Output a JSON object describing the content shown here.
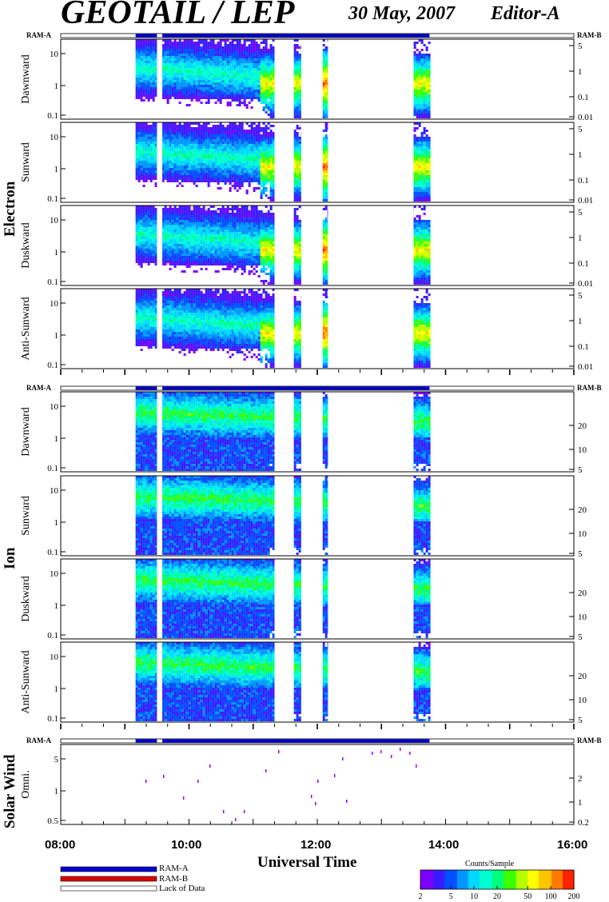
{
  "header": {
    "title": "GEOTAIL / LEP",
    "date": "30 May, 2007",
    "editor": "Editor-A"
  },
  "ram_labels": {
    "left": "RAM-A",
    "right": "RAM-B"
  },
  "groups": {
    "electron": "Electron",
    "ion": "Ion",
    "solar_wind": "Solar Wind"
  },
  "chart_data": {
    "type": "heatmap",
    "title": "GEOTAIL / LEP",
    "xlabel": "Universal Time",
    "x_ticks": [
      "08:00",
      "10:00",
      "12:00",
      "14:00",
      "16:00"
    ],
    "x_range": [
      "08:00",
      "16:00"
    ],
    "data_coverage": [
      "09:10",
      "13:45"
    ],
    "data_gaps": [
      "09:30",
      "09:35",
      "11:20",
      "11:38",
      "11:45",
      "12:05",
      "12:10",
      "13:30"
    ],
    "colorbar": {
      "label": "Counts/Sample",
      "ticks": [
        "2",
        "5",
        "10",
        "20",
        "50",
        "100",
        "200"
      ],
      "range": [
        2,
        200
      ],
      "scale": "log"
    },
    "electron_panels": [
      {
        "name": "Dawnward",
        "left_ticks": [
          "10",
          "1",
          "0.1"
        ],
        "right_ticks": [
          "5",
          "1",
          "0.1",
          "0.01"
        ]
      },
      {
        "name": "Sunward",
        "left_ticks": [
          "10",
          "1",
          "0.1"
        ],
        "right_ticks": [
          "5",
          "1",
          "0.1",
          "0.01"
        ]
      },
      {
        "name": "Duskward",
        "left_ticks": [
          "10",
          "1",
          "0.1"
        ],
        "right_ticks": [
          "5",
          "1",
          "0.1",
          "0.01"
        ]
      },
      {
        "name": "Anti-Sunward",
        "left_ticks": [
          "10",
          "1",
          "0.1"
        ],
        "right_ticks": [
          "5",
          "1",
          "0.1",
          "0.01"
        ]
      }
    ],
    "ion_panels": [
      {
        "name": "Dawnward",
        "left_ticks": [
          "10",
          "1",
          "0.1"
        ],
        "right_ticks": [
          "20",
          "10",
          "5"
        ]
      },
      {
        "name": "Sunward",
        "left_ticks": [
          "10",
          "1",
          "0.1"
        ],
        "right_ticks": [
          "20",
          "10",
          "5"
        ]
      },
      {
        "name": "Duskward",
        "left_ticks": [
          "10",
          "1",
          "0.1"
        ],
        "right_ticks": [
          "20",
          "10",
          "5"
        ]
      },
      {
        "name": "Anti-Sunward",
        "left_ticks": [
          "10",
          "1",
          "0.1"
        ],
        "right_ticks": [
          "20",
          "10",
          "5"
        ]
      }
    ],
    "solar_wind_panel": {
      "name": "Omni.",
      "left_ticks": [
        "5",
        "1",
        "0.5"
      ],
      "right_ticks": [
        "2",
        "1",
        "0.2"
      ]
    }
  },
  "legend": {
    "items": [
      {
        "label": "RAM-A",
        "color": "#0000cc"
      },
      {
        "label": "RAM-B",
        "color": "#dd0000"
      },
      {
        "label": "Lack of Data",
        "color": "#ffffff"
      }
    ]
  },
  "colors": {
    "ram_a": "#0000cc",
    "ram_b": "#dd0000",
    "frame": "#000000"
  }
}
